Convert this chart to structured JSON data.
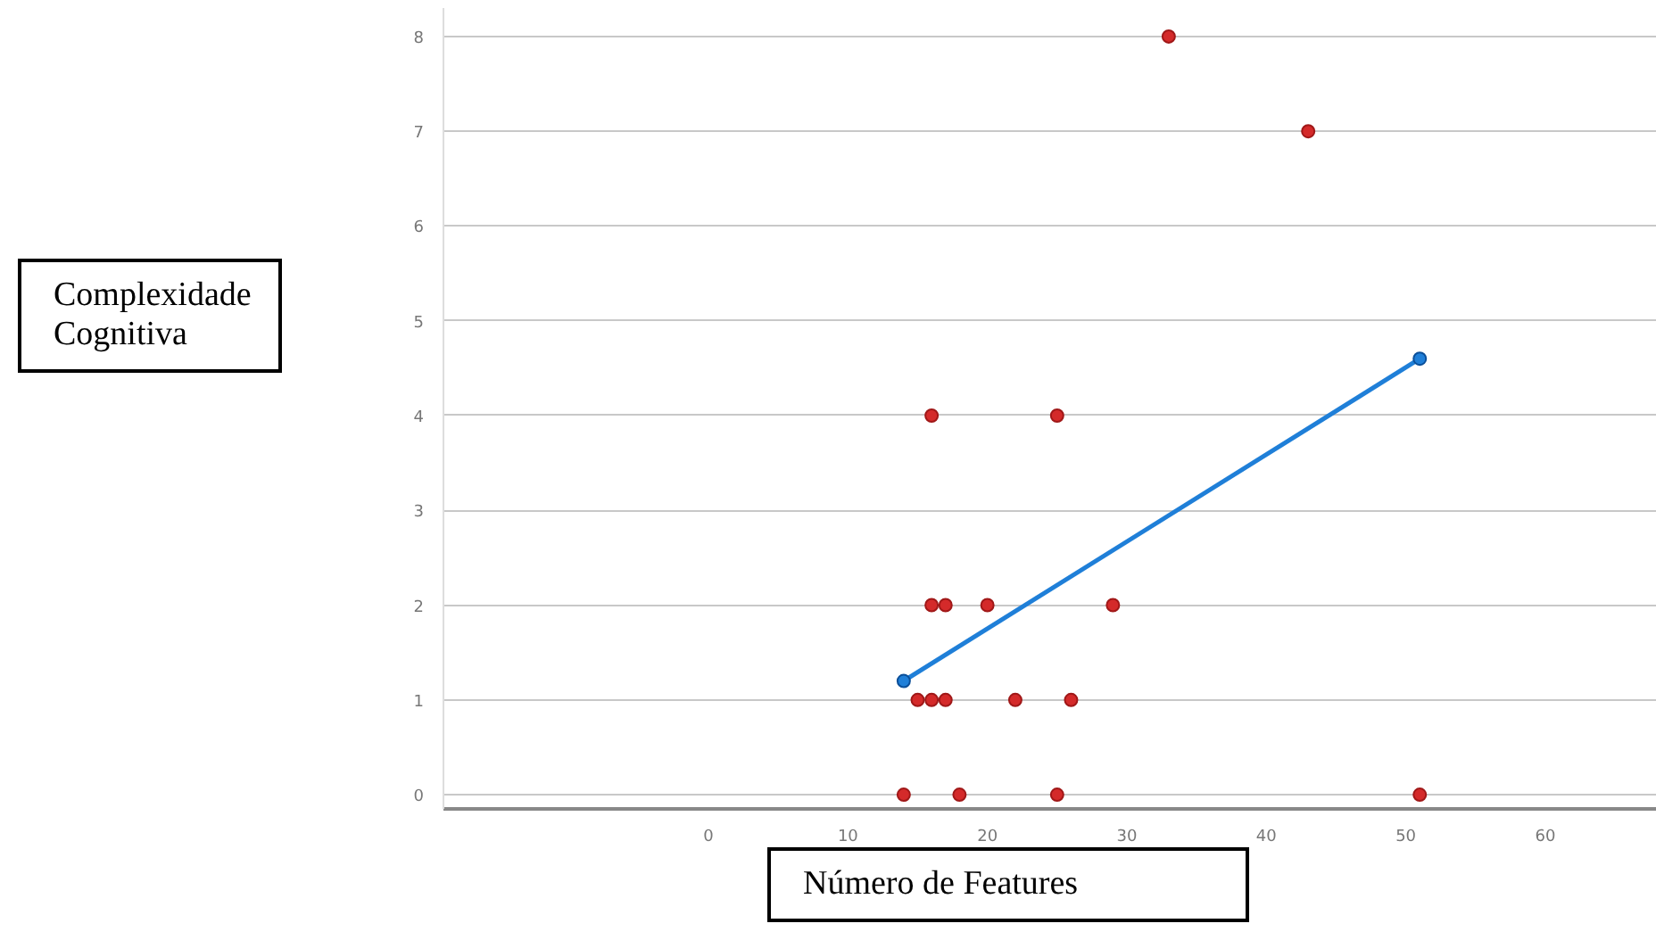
{
  "chart_data": {
    "type": "scatter",
    "xlabel": "Número de Features",
    "ylabel": "Complexidade Cognitiva",
    "xlim": [
      -19,
      68
    ],
    "ylim": [
      -0.15,
      8.3
    ],
    "xticks": [
      0,
      10,
      20,
      30,
      40,
      50,
      60
    ],
    "yticks": [
      0,
      1,
      2,
      3,
      4,
      5,
      6,
      7,
      8
    ],
    "grid": "y",
    "marker": "circle",
    "series": [
      {
        "color": "#d42a2a",
        "x": [
          14,
          18,
          25,
          51,
          15,
          16,
          17,
          22,
          26,
          16,
          17,
          20,
          29,
          16,
          25,
          43,
          33
        ],
        "values": [
          0,
          0,
          0,
          0,
          1,
          1,
          1,
          1,
          1,
          2,
          2,
          2,
          2,
          4,
          4,
          7,
          8
        ]
      },
      {
        "type": "line",
        "color": "#1f7fd8",
        "x": [
          14,
          51
        ],
        "values": [
          1.2,
          4.6
        ],
        "marker": "circle"
      }
    ]
  }
}
